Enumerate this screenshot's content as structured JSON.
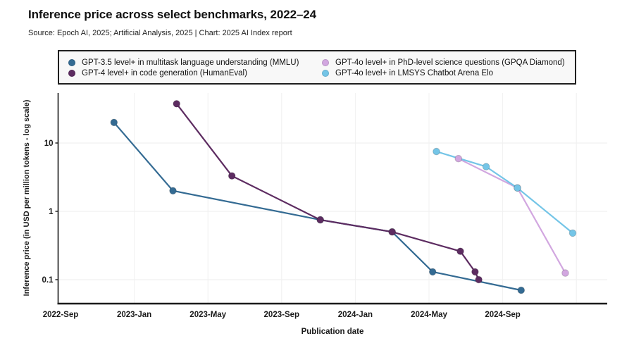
{
  "header": {
    "title": "Inference price across select benchmarks, 2022–24",
    "source": "Source: Epoch AI, 2025; Artificial Analysis, 2025 | Chart: 2025 AI Index report"
  },
  "chart_data": {
    "type": "line",
    "title": "Inference price across select benchmarks, 2022–24",
    "xlabel": "Publication date",
    "ylabel": "Inference price (in USD per million tokens - log scale)",
    "yscale": "log",
    "ylim": [
      0.045,
      50
    ],
    "grid": true,
    "legend_position": "top",
    "yticks": [
      {
        "value": 10,
        "label": "10"
      },
      {
        "value": 1,
        "label": "1"
      },
      {
        "value": 0.1,
        "label": "0.1"
      }
    ],
    "xticks": [
      {
        "m": 0,
        "label": "2022-Sep"
      },
      {
        "m": 4,
        "label": "2023-Jan"
      },
      {
        "m": 8,
        "label": "2023-May"
      },
      {
        "m": 12,
        "label": "2023-Sep"
      },
      {
        "m": 16,
        "label": "2024-Jan"
      },
      {
        "m": 20,
        "label": "2024-May"
      },
      {
        "m": 24,
        "label": "2024-Sep"
      },
      {
        "m": 28,
        "label": ""
      }
    ],
    "x_unit": "months after 2022-Sep",
    "series": [
      {
        "id": "mmlu",
        "name": "GPT-3.5 level+ in multitask language understanding (MMLU)",
        "color": "#346b93",
        "points": [
          {
            "date": "2022-Nov",
            "m": 2.9,
            "price": 20
          },
          {
            "date": "2023-Mar",
            "m": 6.1,
            "price": 2
          },
          {
            "date": "2023-Nov",
            "m": 14.1,
            "price": 0.75
          },
          {
            "date": "2024-Mar",
            "m": 18.0,
            "price": 0.5
          },
          {
            "date": "2024-May",
            "m": 20.2,
            "price": 0.13
          },
          {
            "date": "2024-Oct",
            "m": 25.0,
            "price": 0.07
          }
        ]
      },
      {
        "id": "humaneval",
        "name": "GPT-4 level+ in code generation (HumanEval)",
        "color": "#5d2c61",
        "points": [
          {
            "date": "2023-Mar",
            "m": 6.3,
            "price": 37.5
          },
          {
            "date": "2023-Jun",
            "m": 9.3,
            "price": 3.3
          },
          {
            "date": "2023-Nov",
            "m": 14.1,
            "price": 0.75
          },
          {
            "date": "2024-Mar",
            "m": 18.0,
            "price": 0.5
          },
          {
            "date": "2024-Jun",
            "m": 21.7,
            "price": 0.26
          },
          {
            "date": "2024-Jul",
            "m": 22.5,
            "price": 0.13
          },
          {
            "date": "2024-Jul",
            "m": 22.7,
            "price": 0.1
          }
        ]
      },
      {
        "id": "gpqa",
        "name": "GPT-4o level+ in PhD-level science questions (GPQA Diamond)",
        "color": "#d2a7e0",
        "points": [
          {
            "date": "2024-Jun",
            "m": 21.6,
            "price": 5.9
          },
          {
            "date": "2024-Sep",
            "m": 24.8,
            "price": 2.2
          },
          {
            "date": "2024-Dec",
            "m": 27.4,
            "price": 0.125
          }
        ]
      },
      {
        "id": "lmsys",
        "name": "GPT-4o level+ in LMSYS Chatbot Arena Elo",
        "color": "#74c5e7",
        "points": [
          {
            "date": "2024-May",
            "m": 20.4,
            "price": 7.5
          },
          {
            "date": "2024-Aug",
            "m": 23.1,
            "price": 4.5
          },
          {
            "date": "2024-Sep",
            "m": 24.8,
            "price": 2.2
          },
          {
            "date": "2024-Dec",
            "m": 27.8,
            "price": 0.48
          }
        ]
      }
    ]
  }
}
